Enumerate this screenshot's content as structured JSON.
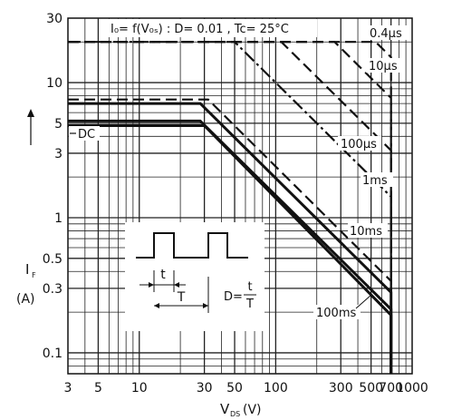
{
  "chart_data": {
    "type": "line",
    "title": "I_D = f(V_DS) : D = 0.01 , Tc = 25°C",
    "title_display": "I₀= f(V₀ₛ) : D= 0.01 , Tc= 25°C",
    "xlabel": "V",
    "xlabel_sub": "DS",
    "xlabel_unit": "(V)",
    "ylabel": "I",
    "ylabel_sub": "F",
    "ylabel_unit": "(A)",
    "x_scale": "log",
    "y_scale": "log",
    "xlim": [
      3,
      1000
    ],
    "ylim": [
      0.07,
      30
    ],
    "x_ticks": [
      {
        "v": 3,
        "label": "3"
      },
      {
        "v": 5,
        "label": "5"
      },
      {
        "v": 10,
        "label": "10"
      },
      {
        "v": 30,
        "label": "30"
      },
      {
        "v": 50,
        "label": "50"
      },
      {
        "v": 100,
        "label": "100"
      },
      {
        "v": 300,
        "label": "300"
      },
      {
        "v": 500,
        "label": "500"
      },
      {
        "v": 700,
        "label": "700"
      },
      {
        "v": 1000,
        "label": "1000"
      }
    ],
    "y_ticks": [
      {
        "v": 0.1,
        "label": "0.1"
      },
      {
        "v": 0.3,
        "label": "0.3"
      },
      {
        "v": 0.5,
        "label": "0.5"
      },
      {
        "v": 1,
        "label": "1"
      },
      {
        "v": 3,
        "label": "3"
      },
      {
        "v": 5,
        "label": "5"
      },
      {
        "v": 10,
        "label": "10"
      },
      {
        "v": 30,
        "label": "30"
      }
    ],
    "series": [
      {
        "name": "0.4μs",
        "style": "dashed",
        "x": [
          3,
          540,
          700,
          700
        ],
        "y": [
          20,
          20,
          15.4,
          0.07
        ]
      },
      {
        "name": "10μs",
        "style": "dashed",
        "x": [
          3,
          270,
          700,
          700
        ],
        "y": [
          20,
          20,
          7.7,
          0.07
        ]
      },
      {
        "name": "100μs",
        "style": "dashed",
        "x": [
          3,
          110,
          700,
          700
        ],
        "y": [
          20,
          20,
          3.15,
          0.07
        ]
      },
      {
        "name": "1ms",
        "style": "dashdot",
        "x": [
          3,
          50,
          700,
          700
        ],
        "y": [
          20,
          20,
          1.43,
          0.07
        ]
      },
      {
        "name": "10ms",
        "style": "dashed",
        "x": [
          3,
          32,
          700,
          700
        ],
        "y": [
          7.5,
          7.5,
          0.34,
          0.07
        ]
      },
      {
        "name": "100ms",
        "style": "solid",
        "x": [
          3,
          28,
          700,
          700
        ],
        "y": [
          7,
          7,
          0.28,
          0.07
        ]
      },
      {
        "name": "DC",
        "style": "solid",
        "x": [
          3,
          28,
          700,
          700
        ],
        "y": [
          5.2,
          5.2,
          0.21,
          0.07
        ]
      },
      {
        "name": "",
        "style": "solid",
        "x": [
          3,
          30,
          700,
          700
        ],
        "y": [
          4.8,
          4.8,
          0.19,
          0.07
        ]
      }
    ],
    "annotations": {
      "dc": "DC",
      "l_04us": "0.4μs",
      "l_10us": "10μs",
      "l_100us": "100μs",
      "l_1ms": "1ms",
      "l_10ms": "10ms",
      "l_100ms": "100ms"
    },
    "inset": {
      "t_label": "t",
      "T_label": "T",
      "formula_prefix": "D=",
      "num": "t",
      "den": "T"
    },
    "grid": true,
    "colors": {
      "line": "#111111",
      "grid": "#222222",
      "bg": "#ffffff"
    }
  }
}
